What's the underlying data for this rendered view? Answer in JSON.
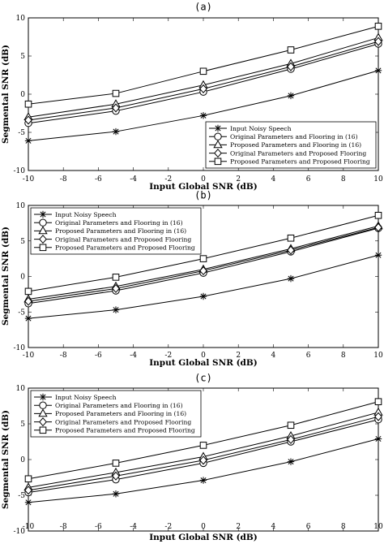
{
  "chart_data": [
    {
      "type": "line",
      "panel_label": "(a)",
      "xlabel": "Input Global SNR (dB)",
      "ylabel": "Segmental SNR (dB)",
      "xlim": [
        -10,
        10
      ],
      "ylim": [
        -10,
        10
      ],
      "xticks": [
        "-10",
        "-8",
        "-6",
        "-4",
        "-2",
        "0",
        "2",
        "4",
        "6",
        "8",
        "10"
      ],
      "yticks": [
        "10",
        "5",
        "0",
        "-5",
        "-10"
      ],
      "legend_position": "bottom-right",
      "x": [
        -10,
        -5,
        0,
        5,
        10
      ],
      "series": [
        {
          "name": "Input Noisy Speech",
          "marker": "star",
          "values": [
            -6.1,
            -4.9,
            -2.8,
            -0.2,
            3.1
          ]
        },
        {
          "name": "Original Parameters and Flooring in (16)",
          "marker": "circle",
          "values": [
            -3.8,
            -2.2,
            0.3,
            3.3,
            6.6
          ]
        },
        {
          "name": "Proposed Parameters and Flooring in (16)",
          "marker": "triangle",
          "values": [
            -3.0,
            -1.3,
            1.2,
            4.0,
            7.4
          ]
        },
        {
          "name": "Original Parameters and Proposed Flooring",
          "marker": "diamond",
          "values": [
            -3.4,
            -1.8,
            0.7,
            3.6,
            6.9
          ]
        },
        {
          "name": "Proposed Parameters and Proposed Flooring",
          "marker": "square",
          "values": [
            -1.3,
            0.1,
            3.0,
            5.8,
            8.9
          ]
        }
      ]
    },
    {
      "type": "line",
      "panel_label": "(b)",
      "xlabel": "Input Global SNR (dB)",
      "ylabel": "Segmental SNR (dB)",
      "xlim": [
        -10,
        10
      ],
      "ylim": [
        -10,
        10
      ],
      "xticks": [
        "-10",
        "-8",
        "-6",
        "-4",
        "-2",
        "0",
        "2",
        "4",
        "6",
        "8",
        "10"
      ],
      "yticks": [
        "10",
        "5",
        "0",
        "-5",
        "-10"
      ],
      "legend_position": "top-left",
      "x": [
        -10,
        -5,
        0,
        5,
        10
      ],
      "series": [
        {
          "name": "Input Noisy Speech",
          "marker": "star",
          "values": [
            -5.9,
            -4.7,
            -2.8,
            -0.3,
            3.0
          ]
        },
        {
          "name": "Original Parameters and Flooring in (16)",
          "marker": "circle",
          "values": [
            -3.8,
            -2.0,
            0.5,
            3.5,
            6.8
          ]
        },
        {
          "name": "Proposed Parameters and Flooring in (16)",
          "marker": "triangle",
          "values": [
            -3.2,
            -1.4,
            1.0,
            3.9,
            7.1
          ]
        },
        {
          "name": "Original Parameters and Proposed Flooring",
          "marker": "diamond",
          "values": [
            -3.5,
            -1.7,
            0.8,
            3.7,
            6.9
          ]
        },
        {
          "name": "Proposed Parameters and Proposed Flooring",
          "marker": "square",
          "values": [
            -2.1,
            -0.1,
            2.5,
            5.4,
            8.6
          ]
        }
      ]
    },
    {
      "type": "line",
      "panel_label": "(c)",
      "xlabel": "Input Global SNR (dB)",
      "ylabel": "Segmental SNR (dB)",
      "xlim": [
        -10,
        10
      ],
      "ylim": [
        -10,
        10
      ],
      "xticks": [
        "-10",
        "-8",
        "-6",
        "-4",
        "-2",
        "0",
        "2",
        "4",
        "6",
        "8",
        "10"
      ],
      "yticks": [
        "10",
        "5",
        "0",
        "-5",
        "-10"
      ],
      "legend_position": "top-left",
      "x": [
        -10,
        -5,
        0,
        5,
        10
      ],
      "series": [
        {
          "name": "Input Noisy Speech",
          "marker": "star",
          "values": [
            -6.0,
            -4.8,
            -2.9,
            -0.3,
            2.9
          ]
        },
        {
          "name": "Original Parameters and Flooring in (16)",
          "marker": "circle",
          "values": [
            -4.6,
            -2.8,
            -0.5,
            2.5,
            5.6
          ]
        },
        {
          "name": "Proposed Parameters and Flooring in (16)",
          "marker": "triangle",
          "values": [
            -3.9,
            -1.8,
            0.4,
            3.3,
            6.6
          ]
        },
        {
          "name": "Original Parameters and Proposed Flooring",
          "marker": "diamond",
          "values": [
            -4.3,
            -2.3,
            -0.1,
            2.8,
            6.0
          ]
        },
        {
          "name": "Proposed Parameters and Proposed Flooring",
          "marker": "square",
          "values": [
            -2.7,
            -0.5,
            2.0,
            4.8,
            8.1
          ]
        }
      ]
    }
  ]
}
